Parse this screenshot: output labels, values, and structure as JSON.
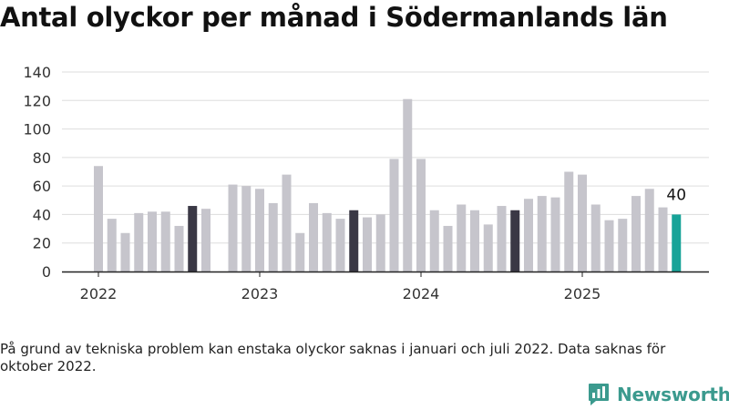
{
  "chart_data": {
    "type": "bar",
    "title": "Antal olyckor per månad i Södermanlands län",
    "ylim": [
      0,
      140
    ],
    "yticks": [
      0,
      20,
      40,
      60,
      80,
      100,
      120,
      140
    ],
    "grid": true,
    "xtick_labels": [
      "2022",
      "2023",
      "2024",
      "2025"
    ],
    "categories": [
      "2022-01",
      "2022-02",
      "2022-03",
      "2022-04",
      "2022-05",
      "2022-06",
      "2022-07",
      "2022-08",
      "2022-09",
      "2022-10",
      "2022-11",
      "2022-12",
      "2023-01",
      "2023-02",
      "2023-03",
      "2023-04",
      "2023-05",
      "2023-06",
      "2023-07",
      "2023-08",
      "2023-09",
      "2023-10",
      "2023-11",
      "2023-12",
      "2024-01",
      "2024-02",
      "2024-03",
      "2024-04",
      "2024-05",
      "2024-06",
      "2024-07",
      "2024-08",
      "2024-09",
      "2024-10",
      "2024-11",
      "2024-12",
      "2025-01",
      "2025-02",
      "2025-03",
      "2025-04",
      "2025-05",
      "2025-06",
      "2025-07",
      "2025-08"
    ],
    "values": [
      74,
      37,
      27,
      41,
      42,
      42,
      32,
      46,
      44,
      null,
      61,
      60,
      58,
      48,
      68,
      27,
      48,
      41,
      37,
      43,
      38,
      40,
      79,
      121,
      79,
      43,
      32,
      47,
      43,
      33,
      46,
      43,
      51,
      53,
      52,
      70,
      68,
      47,
      36,
      37,
      53,
      58,
      45,
      40
    ],
    "highlight": [
      "2022-08",
      "2023-08",
      "2024-08",
      "2025-08"
    ],
    "data_labels": [
      {
        "category": "2025-08",
        "text": "40"
      }
    ],
    "colors": {
      "bar": "#c6c5cc",
      "highlight": "#3a3845",
      "latest": "#17a398",
      "grid": "#dddddd",
      "axis": "#222222"
    }
  },
  "note": "På grund av tekniska problem kan enstaka olyckor saknas i januari och juli 2022. Data saknas för oktober 2022.",
  "logo": {
    "text": "Newsworthy",
    "icon": "newsworthy-chart-bubble-icon",
    "color": "#3b9a8e"
  }
}
